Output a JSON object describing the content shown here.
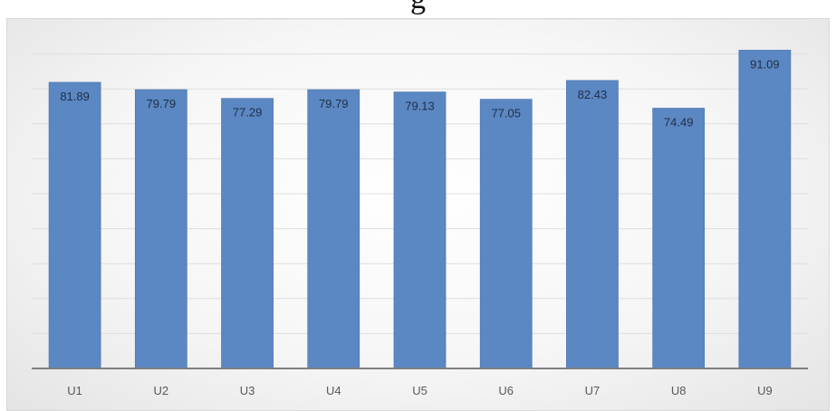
{
  "page": {
    "title_fragment": "g"
  },
  "chart_data": {
    "type": "bar",
    "categories": [
      "U1",
      "U2",
      "U3",
      "U4",
      "U5",
      "U6",
      "U7",
      "U8",
      "U9"
    ],
    "values": [
      81.89,
      79.79,
      77.29,
      79.79,
      79.13,
      77.05,
      82.43,
      74.49,
      91.09
    ],
    "ylim": [
      0,
      100
    ],
    "grid": true,
    "legend": "none",
    "colors": {
      "bar": "#5b87c3",
      "bar_stroke": "#4a73ad",
      "grid": "#dedede",
      "axis": "#7f7f7f"
    }
  }
}
